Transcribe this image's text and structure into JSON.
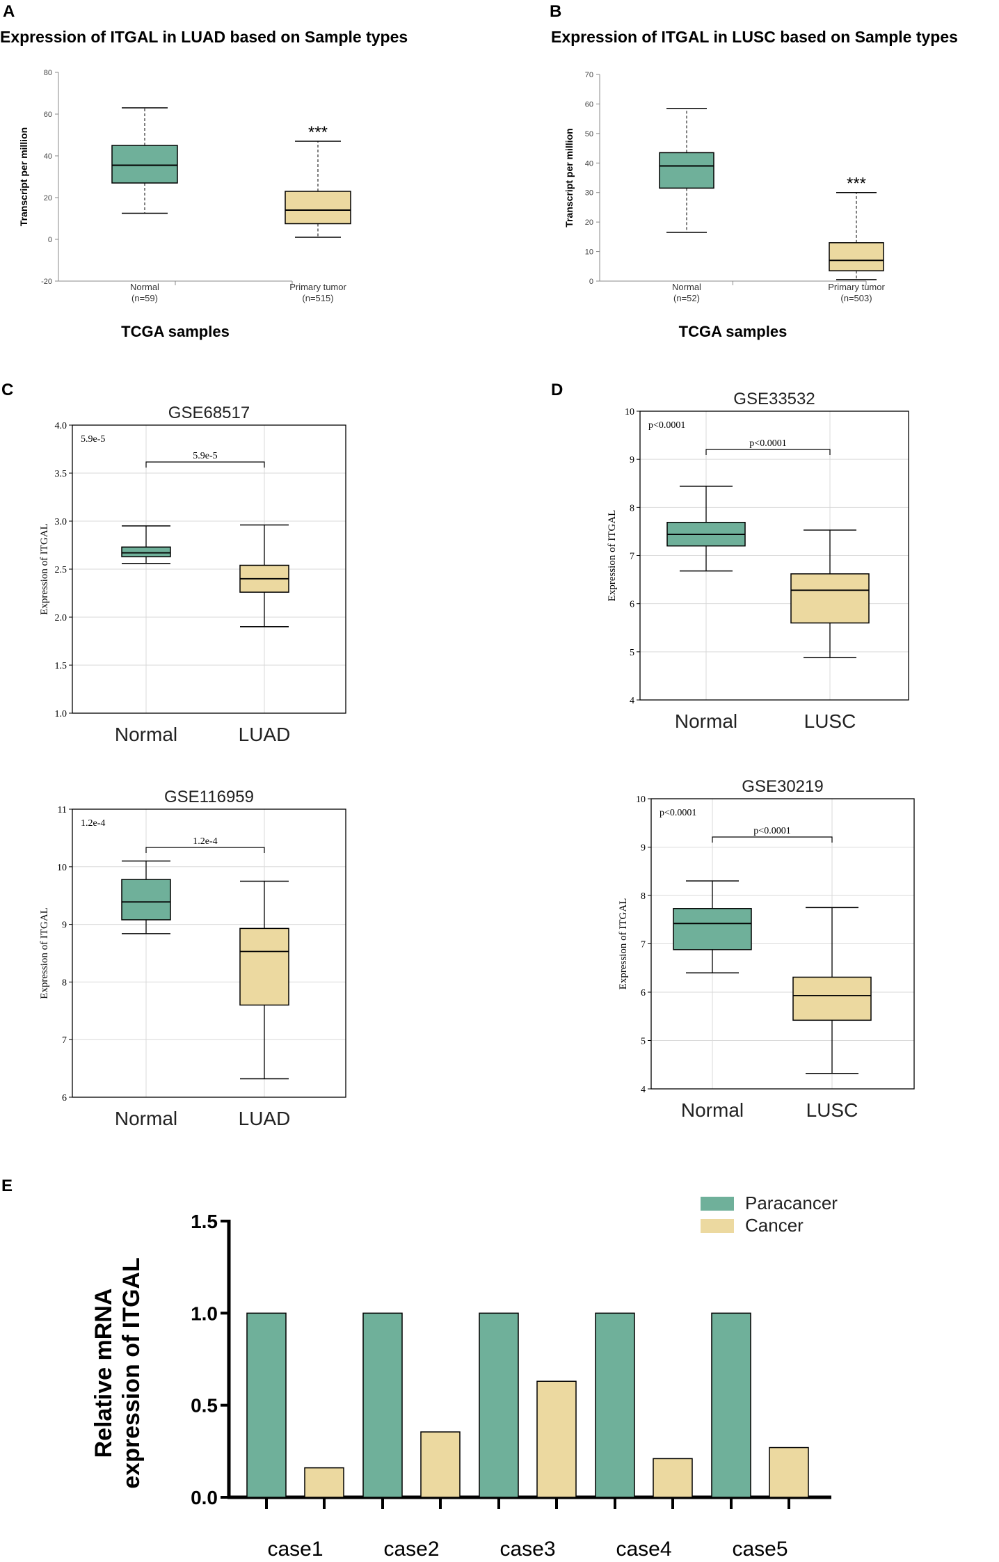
{
  "panels": {
    "A": {
      "label": "A",
      "title": "Expression of ITGAL in LUAD based on Sample types"
    },
    "B": {
      "label": "B",
      "title": "Expression of ITGAL in LUSC based on Sample types"
    },
    "C": {
      "label": "C"
    },
    "D": {
      "label": "D"
    },
    "E": {
      "label": "E"
    }
  },
  "colors": {
    "normal": "#6fb09a",
    "tumor": "#ecd9a0",
    "axis": "#000000",
    "grid": "#d9d9d9"
  },
  "chart_data": [
    {
      "id": "A",
      "type": "box",
      "ylabel": "Transcript per million",
      "xlabel": "TCGA samples",
      "ylim": [
        -20,
        80
      ],
      "yticks": [
        -20,
        0,
        20,
        40,
        60,
        80
      ],
      "groups": [
        {
          "name": "Normal",
          "n": "(n=59)",
          "whislo": 12.5,
          "q1": 27,
          "med": 35.5,
          "q3": 45,
          "whishi": 63,
          "sig": ""
        },
        {
          "name": "Primary tumor",
          "n": "(n=515)",
          "whislo": 1,
          "q1": 7.5,
          "med": 14,
          "q3": 23,
          "whishi": 47,
          "sig": "***"
        }
      ]
    },
    {
      "id": "B",
      "type": "box",
      "ylabel": "Transcript per million",
      "xlabel": "TCGA samples",
      "ylim": [
        0,
        70
      ],
      "yticks": [
        0,
        10,
        20,
        30,
        40,
        50,
        60,
        70
      ],
      "groups": [
        {
          "name": "Normal",
          "n": "(n=52)",
          "whislo": 16.5,
          "q1": 31.5,
          "med": 39,
          "q3": 43.5,
          "whishi": 58.5,
          "sig": ""
        },
        {
          "name": "Primary tumor",
          "n": "(n=503)",
          "whislo": 0.5,
          "q1": 3.5,
          "med": 7,
          "q3": 13,
          "whishi": 30,
          "sig": "***"
        }
      ]
    },
    {
      "id": "C1",
      "type": "box",
      "title": "GSE68517",
      "ylabel": "Expression of ITGAL",
      "ylim": [
        1.0,
        4.0
      ],
      "yticks": [
        "1.0",
        "1.5",
        "2.0",
        "2.5",
        "3.0",
        "3.5",
        "4.0"
      ],
      "pvalue": "5.9e-5",
      "bracket": "5.9e-5",
      "groups": [
        {
          "name": "Normal",
          "whislo": 2.56,
          "q1": 2.63,
          "med": 2.67,
          "q3": 2.73,
          "whishi": 2.95
        },
        {
          "name": "LUAD",
          "whislo": 1.9,
          "q1": 2.26,
          "med": 2.4,
          "q3": 2.54,
          "whishi": 2.96
        }
      ]
    },
    {
      "id": "C2",
      "type": "box",
      "title": "GSE116959",
      "ylabel": "Expression of ITGAL",
      "ylim": [
        6,
        11
      ],
      "yticks": [
        "6",
        "7",
        "8",
        "9",
        "10",
        "11"
      ],
      "pvalue": "1.2e-4",
      "bracket": "1.2e-4",
      "groups": [
        {
          "name": "Normal",
          "whislo": 8.84,
          "q1": 9.08,
          "med": 9.39,
          "q3": 9.78,
          "whishi": 10.1
        },
        {
          "name": "LUAD",
          "whislo": 6.32,
          "q1": 7.6,
          "med": 8.53,
          "q3": 8.93,
          "whishi": 9.75
        }
      ]
    },
    {
      "id": "D1",
      "type": "box",
      "title": "GSE33532",
      "ylabel": "Expression of ITGAL",
      "ylim": [
        4,
        10
      ],
      "yticks": [
        "4",
        "5",
        "6",
        "7",
        "8",
        "9",
        "10"
      ],
      "pvalue": "p<0.0001",
      "bracket": "p<0.0001",
      "groups": [
        {
          "name": "Normal",
          "whislo": 6.68,
          "q1": 7.2,
          "med": 7.44,
          "q3": 7.69,
          "whishi": 8.44
        },
        {
          "name": "LUSC",
          "whislo": 4.88,
          "q1": 5.6,
          "med": 6.28,
          "q3": 6.62,
          "whishi": 7.53
        }
      ]
    },
    {
      "id": "D2",
      "type": "box",
      "title": "GSE30219",
      "ylabel": "Expression of ITGAL",
      "ylim": [
        4,
        10
      ],
      "yticks": [
        "4",
        "5",
        "6",
        "7",
        "8",
        "9",
        "10"
      ],
      "pvalue": "p<0.0001",
      "bracket": "p<0.0001",
      "groups": [
        {
          "name": "Normal",
          "whislo": 6.4,
          "q1": 6.88,
          "med": 7.42,
          "q3": 7.73,
          "whishi": 8.3
        },
        {
          "name": "LUSC",
          "whislo": 4.32,
          "q1": 5.42,
          "med": 5.93,
          "q3": 6.31,
          "whishi": 7.75
        }
      ]
    },
    {
      "id": "E",
      "type": "bar",
      "ylabel_lines": [
        "Relative mRNA",
        "expression of ITGAL"
      ],
      "ylim": [
        0,
        1.5
      ],
      "yticks": [
        "0.0",
        "0.5",
        "1.0",
        "1.5"
      ],
      "categories": [
        "case1",
        "case2",
        "case3",
        "case4",
        "case5"
      ],
      "series": [
        {
          "name": "Paracancer",
          "values": [
            1.0,
            1.0,
            1.0,
            1.0,
            1.0
          ]
        },
        {
          "name": "Cancer",
          "values": [
            0.16,
            0.355,
            0.63,
            0.21,
            0.27
          ]
        }
      ]
    }
  ]
}
